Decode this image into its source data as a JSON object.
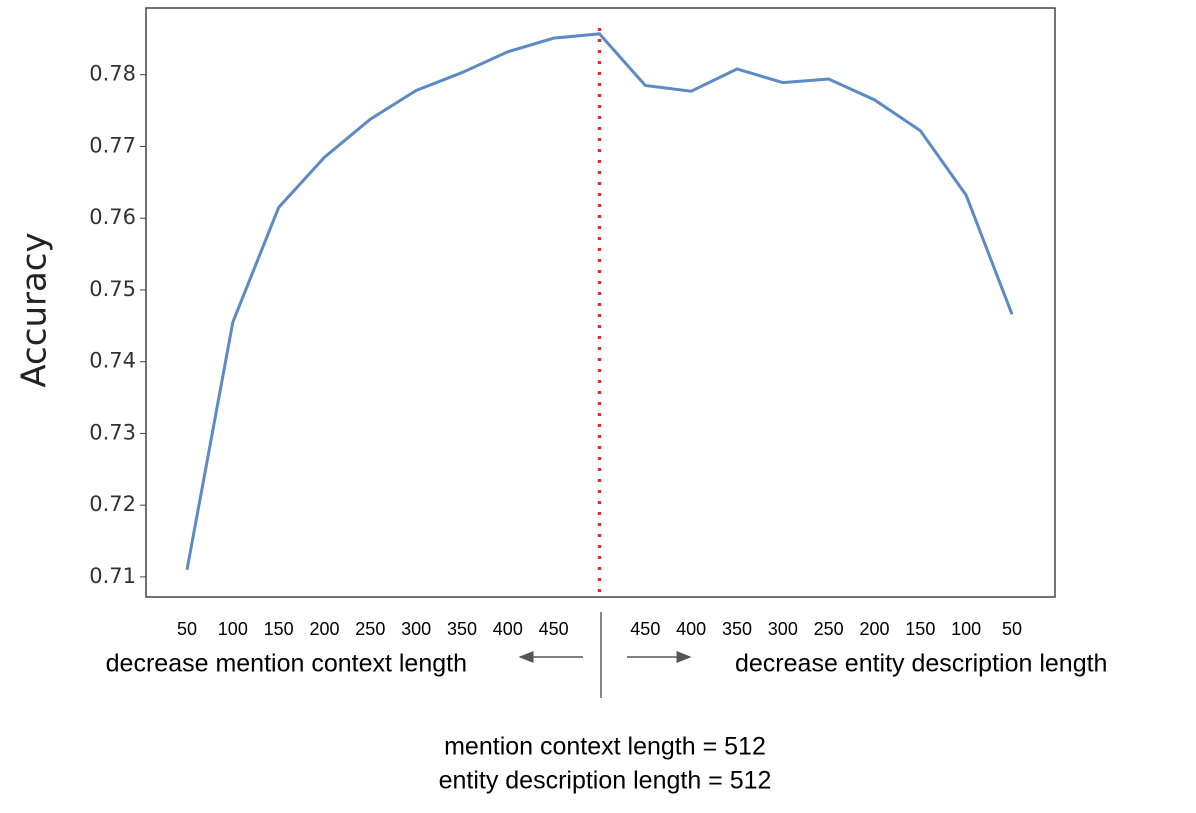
{
  "chart_data": {
    "type": "line",
    "y_label": "Accuracy",
    "categories": [
      "50",
      "100",
      "150",
      "200",
      "250",
      "300",
      "350",
      "400",
      "450",
      null,
      "450",
      "400",
      "350",
      "300",
      "250",
      "200",
      "150",
      "100",
      "50"
    ],
    "series": [
      {
        "name": "accuracy",
        "color": "#5b8ac4",
        "values": [
          0.711,
          0.7455,
          0.7615,
          0.7685,
          0.7738,
          0.7778,
          0.7803,
          0.7832,
          0.7851,
          0.7857,
          0.7785,
          0.7777,
          0.7808,
          0.7789,
          0.7794,
          0.7765,
          0.7722,
          0.7632,
          0.7466
        ]
      }
    ],
    "ylim": [
      0.7072,
      0.7893
    ],
    "yticks": [
      0.71,
      0.72,
      0.73,
      0.74,
      0.75,
      0.76,
      0.77,
      0.78
    ],
    "annotations": [
      "decrease mention context length",
      "decrease entity description length",
      "mention context length = 512",
      "entity description length = 512"
    ]
  }
}
